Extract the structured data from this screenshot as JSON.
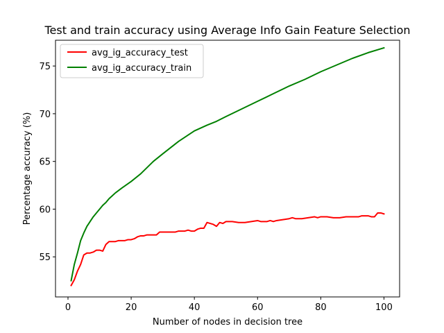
{
  "chart_data": {
    "type": "line",
    "title": "Test and train accuracy using Average Info Gain Feature Selection",
    "xlabel": "Number of nodes in decision tree",
    "ylabel": "Percentage accuracy (%)",
    "xlim": [
      -3.95,
      104.95
    ],
    "ylim": [
      50.8,
      77.7
    ],
    "xticks": [
      0,
      20,
      40,
      60,
      80,
      100
    ],
    "yticks": [
      55,
      60,
      65,
      70,
      75
    ],
    "grid": false,
    "legend_position": "top-left",
    "series": [
      {
        "name": "avg_ig_accuracy_test",
        "color": "#ff0000",
        "points": [
          [
            1,
            52.0
          ],
          [
            2,
            52.6
          ],
          [
            3,
            53.5
          ],
          [
            4,
            54.2
          ],
          [
            5,
            55.2
          ],
          [
            6,
            55.4
          ],
          [
            7,
            55.4
          ],
          [
            8,
            55.5
          ],
          [
            9,
            55.7
          ],
          [
            10,
            55.7
          ],
          [
            11,
            55.6
          ],
          [
            12,
            56.3
          ],
          [
            13,
            56.6
          ],
          [
            14,
            56.6
          ],
          [
            15,
            56.6
          ],
          [
            16,
            56.7
          ],
          [
            17,
            56.7
          ],
          [
            18,
            56.7
          ],
          [
            19,
            56.8
          ],
          [
            20,
            56.8
          ],
          [
            21,
            56.9
          ],
          [
            22,
            57.1
          ],
          [
            23,
            57.2
          ],
          [
            24,
            57.2
          ],
          [
            25,
            57.3
          ],
          [
            26,
            57.3
          ],
          [
            27,
            57.3
          ],
          [
            28,
            57.3
          ],
          [
            29,
            57.6
          ],
          [
            30,
            57.6
          ],
          [
            31,
            57.6
          ],
          [
            32,
            57.6
          ],
          [
            33,
            57.6
          ],
          [
            34,
            57.6
          ],
          [
            35,
            57.7
          ],
          [
            36,
            57.7
          ],
          [
            37,
            57.7
          ],
          [
            38,
            57.8
          ],
          [
            39,
            57.7
          ],
          [
            40,
            57.7
          ],
          [
            41,
            57.9
          ],
          [
            42,
            58.0
          ],
          [
            43,
            58.0
          ],
          [
            44,
            58.6
          ],
          [
            45,
            58.5
          ],
          [
            46,
            58.4
          ],
          [
            47,
            58.2
          ],
          [
            48,
            58.6
          ],
          [
            49,
            58.5
          ],
          [
            50,
            58.7
          ],
          [
            52,
            58.7
          ],
          [
            54,
            58.6
          ],
          [
            56,
            58.6
          ],
          [
            58,
            58.7
          ],
          [
            60,
            58.8
          ],
          [
            61,
            58.7
          ],
          [
            63,
            58.7
          ],
          [
            64,
            58.8
          ],
          [
            65,
            58.7
          ],
          [
            66,
            58.8
          ],
          [
            68,
            58.9
          ],
          [
            70,
            59.0
          ],
          [
            71,
            59.1
          ],
          [
            72,
            59.0
          ],
          [
            74,
            59.0
          ],
          [
            76,
            59.1
          ],
          [
            78,
            59.2
          ],
          [
            79,
            59.1
          ],
          [
            80,
            59.2
          ],
          [
            82,
            59.2
          ],
          [
            84,
            59.1
          ],
          [
            86,
            59.1
          ],
          [
            88,
            59.2
          ],
          [
            90,
            59.2
          ],
          [
            92,
            59.2
          ],
          [
            93,
            59.3
          ],
          [
            95,
            59.3
          ],
          [
            96,
            59.2
          ],
          [
            97,
            59.2
          ],
          [
            98,
            59.6
          ],
          [
            99,
            59.6
          ],
          [
            100,
            59.5
          ]
        ]
      },
      {
        "name": "avg_ig_accuracy_train",
        "color": "#008000",
        "points": [
          [
            1,
            52.5
          ],
          [
            2,
            54.2
          ],
          [
            3,
            55.4
          ],
          [
            4,
            56.7
          ],
          [
            5,
            57.5
          ],
          [
            6,
            58.2
          ],
          [
            7,
            58.7
          ],
          [
            8,
            59.2
          ],
          [
            9,
            59.6
          ],
          [
            10,
            60.0
          ],
          [
            11,
            60.4
          ],
          [
            12,
            60.7
          ],
          [
            13,
            61.1
          ],
          [
            14,
            61.4
          ],
          [
            15,
            61.7
          ],
          [
            17,
            62.2
          ],
          [
            20,
            62.9
          ],
          [
            23,
            63.7
          ],
          [
            27,
            65.0
          ],
          [
            30,
            65.8
          ],
          [
            35,
            67.1
          ],
          [
            40,
            68.2
          ],
          [
            44,
            68.8
          ],
          [
            47,
            69.2
          ],
          [
            50,
            69.7
          ],
          [
            55,
            70.5
          ],
          [
            60,
            71.3
          ],
          [
            65,
            72.1
          ],
          [
            70,
            72.9
          ],
          [
            75,
            73.6
          ],
          [
            80,
            74.4
          ],
          [
            85,
            75.1
          ],
          [
            90,
            75.8
          ],
          [
            95,
            76.4
          ],
          [
            100,
            76.9
          ]
        ]
      }
    ]
  }
}
